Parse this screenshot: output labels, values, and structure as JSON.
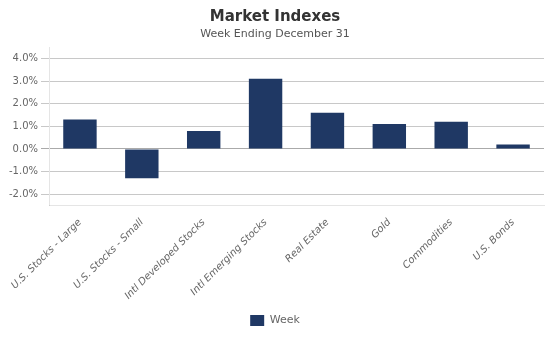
{
  "chart_data": {
    "type": "bar",
    "title": "Market Indexes",
    "subtitle": "Week Ending December 31",
    "categories": [
      "U.S. Stocks - Large",
      "U.S. Stocks - Small",
      "Intl Developed Stocks",
      "Intl Emerging Stocks",
      "Real Estate",
      "Gold",
      "Commodities",
      "U.S. Bonds"
    ],
    "series": [
      {
        "name": "Week",
        "color": "#1F3864",
        "values": [
          1.3,
          -1.3,
          0.8,
          3.1,
          1.6,
          1.1,
          1.2,
          0.2
        ]
      }
    ],
    "ylim": [
      -2.5,
      4.5
    ],
    "yticks": [
      {
        "value": -2.0,
        "label": "-2.0%"
      },
      {
        "value": -1.0,
        "label": "-1.0%"
      },
      {
        "value": 0.0,
        "label": "0.0%"
      },
      {
        "value": 1.0,
        "label": "1.0%"
      },
      {
        "value": 2.0,
        "label": "2.0%"
      },
      {
        "value": 3.0,
        "label": "3.0%"
      },
      {
        "value": 4.0,
        "label": "4.0%"
      }
    ],
    "grid": true,
    "legend": "bottom"
  }
}
